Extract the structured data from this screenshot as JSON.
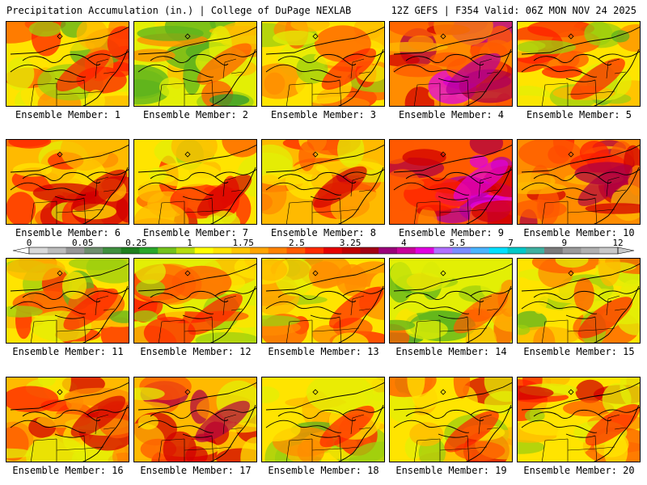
{
  "header": {
    "left_title": "Precipitation Accumulation (in.) | College of DuPage NEXLAB",
    "right_title": "12Z GEFS | F354 Valid: 06Z MON NOV 24 2025"
  },
  "members": [
    {
      "label": "Ensemble Member: 1",
      "intensity": 0.4
    },
    {
      "label": "Ensemble Member: 2",
      "intensity": 0.3
    },
    {
      "label": "Ensemble Member: 3",
      "intensity": 0.42
    },
    {
      "label": "Ensemble Member: 4",
      "intensity": 0.7
    },
    {
      "label": "Ensemble Member: 5",
      "intensity": 0.4
    },
    {
      "label": "Ensemble Member: 6",
      "intensity": 0.5
    },
    {
      "label": "Ensemble Member: 7",
      "intensity": 0.48
    },
    {
      "label": "Ensemble Member: 8",
      "intensity": 0.5
    },
    {
      "label": "Ensemble Member: 9",
      "intensity": 0.8
    },
    {
      "label": "Ensemble Member: 10",
      "intensity": 0.62
    },
    {
      "label": "Ensemble Member: 11",
      "intensity": 0.4
    },
    {
      "label": "Ensemble Member: 12",
      "intensity": 0.38
    },
    {
      "label": "Ensemble Member: 13",
      "intensity": 0.42
    },
    {
      "label": "Ensemble Member: 14",
      "intensity": 0.32
    },
    {
      "label": "Ensemble Member: 15",
      "intensity": 0.4
    },
    {
      "label": "Ensemble Member: 16",
      "intensity": 0.5
    },
    {
      "label": "Ensemble Member: 17",
      "intensity": 0.55
    },
    {
      "label": "Ensemble Member: 18",
      "intensity": 0.4
    },
    {
      "label": "Ensemble Member: 19",
      "intensity": 0.44
    },
    {
      "label": "Ensemble Member: 20",
      "intensity": 0.45
    }
  ],
  "colorbar": {
    "tick_labels": [
      "0",
      "0.05",
      "0.25",
      "1",
      "1.75",
      "2.5",
      "3.25",
      "4",
      "5.5",
      "7",
      "9",
      "12"
    ],
    "colors": [
      "#d9d9d9",
      "#bcbcbc",
      "#969696",
      "#6e8e6e",
      "#3f8f3f",
      "#1f7f1f",
      "#2aa72a",
      "#74c21c",
      "#b6dc0e",
      "#ffff00",
      "#ffe400",
      "#ffc600",
      "#ffa500",
      "#ff8200",
      "#ff5a00",
      "#ff2a00",
      "#e60000",
      "#c00000",
      "#a30014",
      "#9a007a",
      "#c8009a",
      "#e000e0",
      "#b070ff",
      "#7a8cff",
      "#4ab4ff",
      "#00e0ff",
      "#00c8c8",
      "#3fb0a0",
      "#7a7a7a",
      "#9a9a9a",
      "#b0b0b0",
      "#c8c8c8"
    ]
  }
}
